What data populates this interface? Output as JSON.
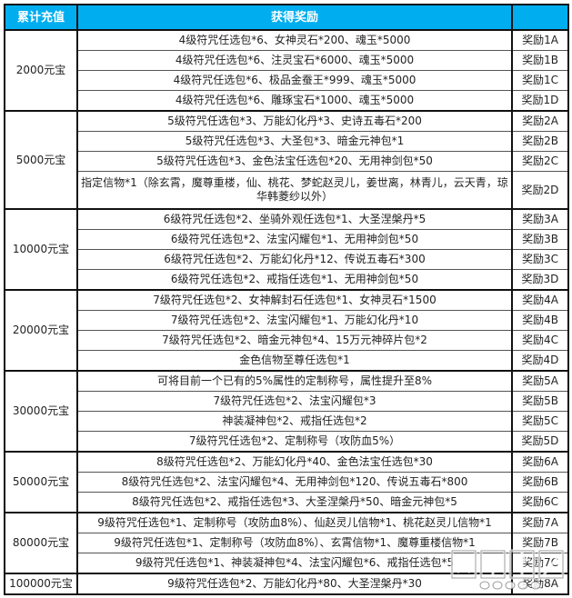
{
  "header": {
    "amount": "累计充值",
    "reward": "获得奖励",
    "label": ""
  },
  "colors": {
    "header_bg": "#00aeef",
    "header_text": "#ffffff"
  },
  "groups": [
    {
      "amount": "2000元宝",
      "rows": [
        {
          "reward": "4级符咒任选包*6、女神灵石*200、魂玉*5000",
          "label": "奖励1A"
        },
        {
          "reward": "4级符咒任选包*6、注灵宝石*6000、魂玉*5000",
          "label": "奖励1B"
        },
        {
          "reward": "4级符咒任选包*6、极品金蚕王*999、魂玉*5000",
          "label": "奖励1C"
        },
        {
          "reward": "4级符咒任选包*6、雕琢宝石*1000、魂玉*5000",
          "label": "奖励1D"
        }
      ]
    },
    {
      "amount": "5000元宝",
      "rows": [
        {
          "reward": "5级符咒任选包*3、万能幻化丹*3、史诗五毒石*200",
          "label": "奖励2A"
        },
        {
          "reward": "5级符咒任选包*3、大圣包*3、暗金元神包*1",
          "label": "奖励2B"
        },
        {
          "reward": "5级符咒任选包*3、金色法宝任选包*20、无用神剑包*50",
          "label": "奖励2C"
        },
        {
          "reward": "指定信物*1（除玄霄，魔尊重楼，仙、桃花、梦蛇赵灵儿，姜世离，林青儿，云天青，琼华韩菱纱以外）",
          "label": "奖励2D"
        }
      ]
    },
    {
      "amount": "10000元宝",
      "rows": [
        {
          "reward": "6级符咒任选包*2、坐骑外观任选包*1、大圣涅槃丹*5",
          "label": "奖励3A"
        },
        {
          "reward": "6级符咒任选包*2、法宝闪耀包*1、无用神剑包*50",
          "label": "奖励3B"
        },
        {
          "reward": "6级符咒任选包*2、万能幻化丹*12、传说五毒石*300",
          "label": "奖励3C"
        },
        {
          "reward": "6级符咒任选包*2、戒指任选包*1、无用神剑包*50",
          "label": "奖励3D"
        }
      ]
    },
    {
      "amount": "20000元宝",
      "rows": [
        {
          "reward": "7级符咒任选包*2、女神解封石任选包*1、女神灵石*1500",
          "label": "奖励4A"
        },
        {
          "reward": "7级符咒任选包*2、法宝闪耀包*1、万能幻化丹*10",
          "label": "奖励4B"
        },
        {
          "reward": "7级符咒任选包*2、暗金元神包*4、15万元神碎片包*2",
          "label": "奖励4C"
        },
        {
          "reward": "金色信物至尊任选包*1",
          "label": "奖励4D"
        }
      ]
    },
    {
      "amount": "30000元宝",
      "rows": [
        {
          "reward": "可将目前一个已有的5%属性的定制称号，属性提升至8%",
          "label": "奖励5A"
        },
        {
          "reward": "7级符咒任选包*2、法宝闪耀包*3",
          "label": "奖励5B"
        },
        {
          "reward": "神装凝神包*2、戒指任选包*2",
          "label": "奖励5C"
        },
        {
          "reward": "7级符咒任选包*2、定制称号（攻防血5%）",
          "label": "奖励5D"
        }
      ]
    },
    {
      "amount": "50000元宝",
      "rows": [
        {
          "reward": "8级符咒任选包*2、万能幻化丹*40、金色法宝任选包*30",
          "label": "奖励6A"
        },
        {
          "reward": "8级符咒任选包*2、法宝闪耀包*4、无用神剑包*120、传说五毒石*800",
          "label": "奖励6B"
        },
        {
          "reward": "8级符咒任选包*2、戒指任选包*3、大圣涅槃丹*50、暗金元神包*5",
          "label": "奖励6C"
        }
      ]
    },
    {
      "amount": "80000元宝",
      "rows": [
        {
          "reward": "9级符咒任选包*1、定制称号（攻防血8%）、仙赵灵儿信物*1、桃花赵灵儿信物*1",
          "label": "奖励7A"
        },
        {
          "reward": "9级符咒任选包*1、定制称号（攻防血8%）、玄霄信物*1、魔尊重楼信物*1",
          "label": "奖励7B"
        },
        {
          "reward": "9级符咒任选包*1、神装凝神包*4、法宝闪耀包*6、戒指任选包*5",
          "label": "奖励7C"
        }
      ]
    },
    {
      "amount": "100000元宝",
      "rows": [
        {
          "reward": "9级符咒任选包*2、万能幻化丹*80、大圣涅槃丹*30",
          "label": "奖励8A"
        }
      ]
    }
  ],
  "watermark": {
    "text": "网页游戏",
    "sub": "07073.com"
  }
}
